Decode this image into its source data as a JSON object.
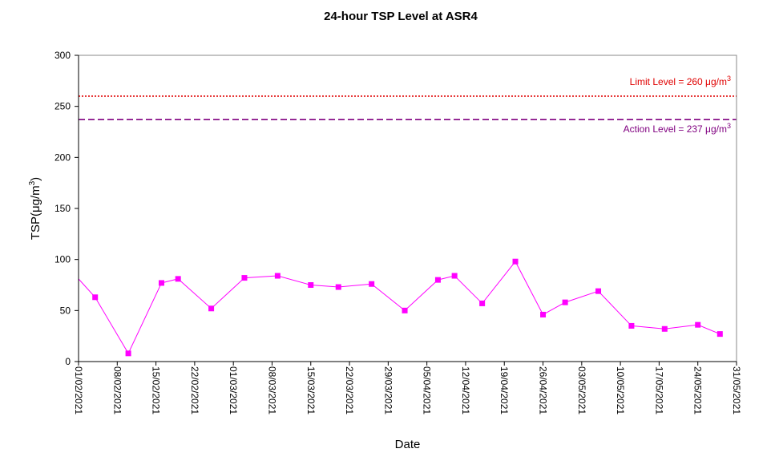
{
  "chart_data": {
    "type": "line",
    "title": "24-hour TSP Level at ASR4",
    "xlabel": "Date",
    "ylabel": "TSP(μg/m3)",
    "ylabel_parts": {
      "main": "TSP(",
      "unit": "μg/m",
      "sup": "3",
      "close": ")"
    },
    "ylim": [
      0,
      300
    ],
    "yticks": [
      0,
      50,
      100,
      150,
      200,
      250,
      300
    ],
    "xlim": [
      "01/02/2021",
      "31/05/2021"
    ],
    "xticks": [
      "01/02/2021",
      "08/02/2021",
      "15/02/2021",
      "22/02/2021",
      "01/03/2021",
      "08/03/2021",
      "15/03/2021",
      "22/03/2021",
      "29/03/2021",
      "05/04/2021",
      "12/04/2021",
      "19/04/2021",
      "26/04/2021",
      "03/05/2021",
      "10/05/2021",
      "17/05/2021",
      "24/05/2021",
      "31/05/2021"
    ],
    "grid": false,
    "series": [
      {
        "color": "#ff00ff",
        "marker": "square",
        "points": [
          {
            "x": "01/02/2021",
            "y": 81
          },
          {
            "x": "04/02/2021",
            "y": 63
          },
          {
            "x": "10/02/2021",
            "y": 8
          },
          {
            "x": "16/02/2021",
            "y": 77
          },
          {
            "x": "19/02/2021",
            "y": 81
          },
          {
            "x": "25/02/2021",
            "y": 52
          },
          {
            "x": "03/03/2021",
            "y": 82
          },
          {
            "x": "09/03/2021",
            "y": 84
          },
          {
            "x": "15/03/2021",
            "y": 75
          },
          {
            "x": "20/03/2021",
            "y": 73
          },
          {
            "x": "26/03/2021",
            "y": 76
          },
          {
            "x": "01/04/2021",
            "y": 50
          },
          {
            "x": "07/04/2021",
            "y": 80
          },
          {
            "x": "10/04/2021",
            "y": 84
          },
          {
            "x": "15/04/2021",
            "y": 57
          },
          {
            "x": "21/04/2021",
            "y": 98
          },
          {
            "x": "26/04/2021",
            "y": 46
          },
          {
            "x": "30/04/2021",
            "y": 58
          },
          {
            "x": "06/05/2021",
            "y": 69
          },
          {
            "x": "12/05/2021",
            "y": 35
          },
          {
            "x": "18/05/2021",
            "y": 32
          },
          {
            "x": "24/05/2021",
            "y": 36
          },
          {
            "x": "28/05/2021",
            "y": 27
          }
        ]
      }
    ],
    "reference_lines": [
      {
        "label": "Limit Level  = 260 μg/m",
        "sup": "3",
        "value": 260,
        "color": "#e00000",
        "style": "dotted"
      },
      {
        "label": "Action Level  = 237 μg/m",
        "sup": "3",
        "value": 237,
        "color": "#800080",
        "style": "dashed"
      }
    ]
  }
}
